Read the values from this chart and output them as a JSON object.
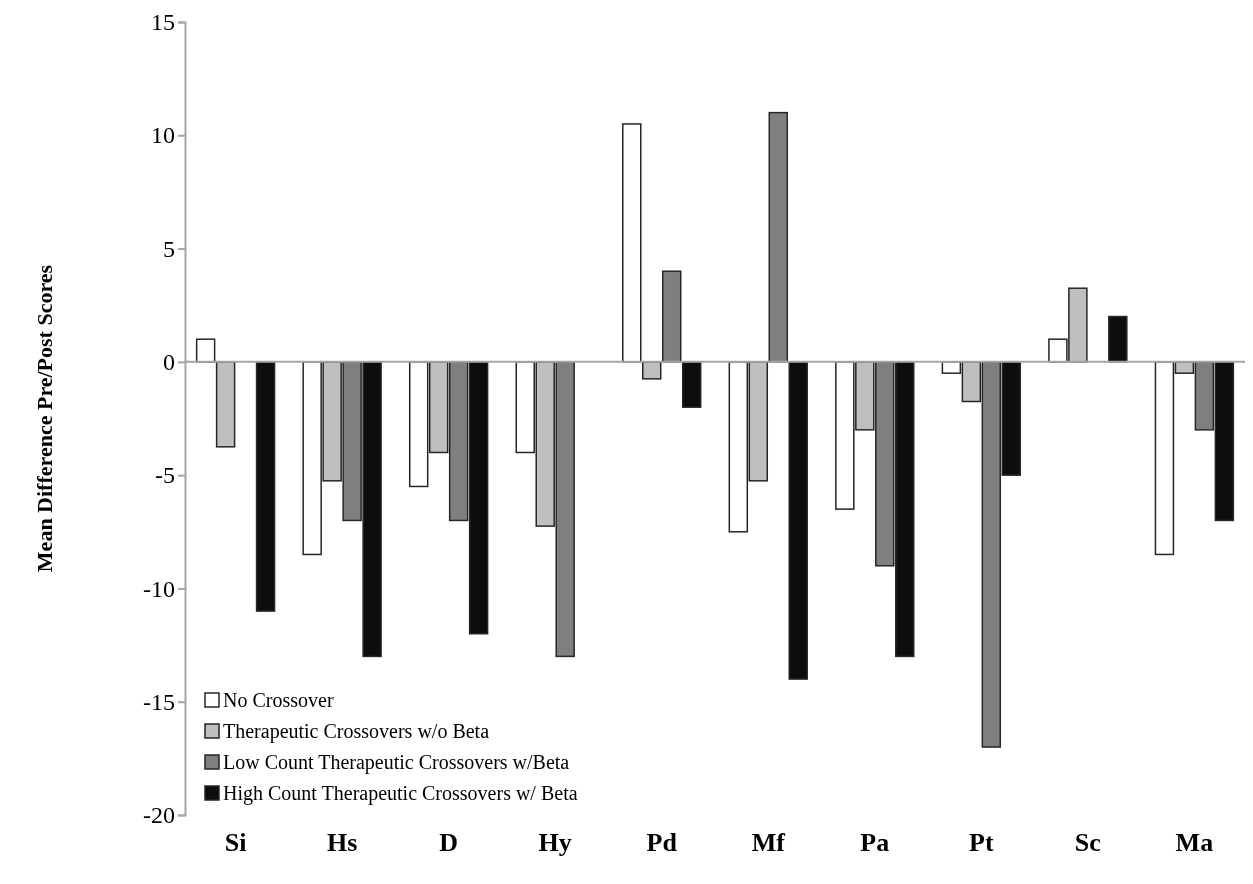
{
  "chart_data": {
    "type": "bar",
    "ylabel": "Mean Difference Pre/Post Scores",
    "categories": [
      "Si",
      "Hs",
      "D",
      "Hy",
      "Pd",
      "Mf",
      "Pa",
      "Pt",
      "Sc",
      "Ma"
    ],
    "series": [
      {
        "name": "No Crossover",
        "color": "#ffffff",
        "values": [
          1,
          -8.5,
          -5.5,
          -4,
          10.5,
          -7.5,
          -6.5,
          -0.5,
          1,
          -8.5
        ]
      },
      {
        "name": "Therapeutic Crossovers w/o Beta",
        "color": "#bfbfbf",
        "values": [
          -3.75,
          -5.25,
          -4,
          -7.25,
          -0.75,
          -5.25,
          -3,
          -1.75,
          3.25,
          -0.5
        ]
      },
      {
        "name": "Low Count Therapeutic Crossovers w/Beta",
        "color": "#7f7f7f",
        "values": [
          0,
          -7,
          -7,
          -13,
          4,
          11,
          -9,
          -17,
          0,
          -3
        ]
      },
      {
        "name": "High Count Therapeutic Crossovers w/ Beta",
        "color": "#0d0d0d",
        "values": [
          -11,
          -13,
          -12,
          0,
          -2,
          -14,
          -13,
          -5,
          2,
          -7
        ]
      }
    ],
    "ylim": [
      -20,
      15
    ],
    "yticks": [
      -20,
      -15,
      -10,
      -5,
      0,
      5,
      10,
      15
    ],
    "legend": "bottom left"
  }
}
